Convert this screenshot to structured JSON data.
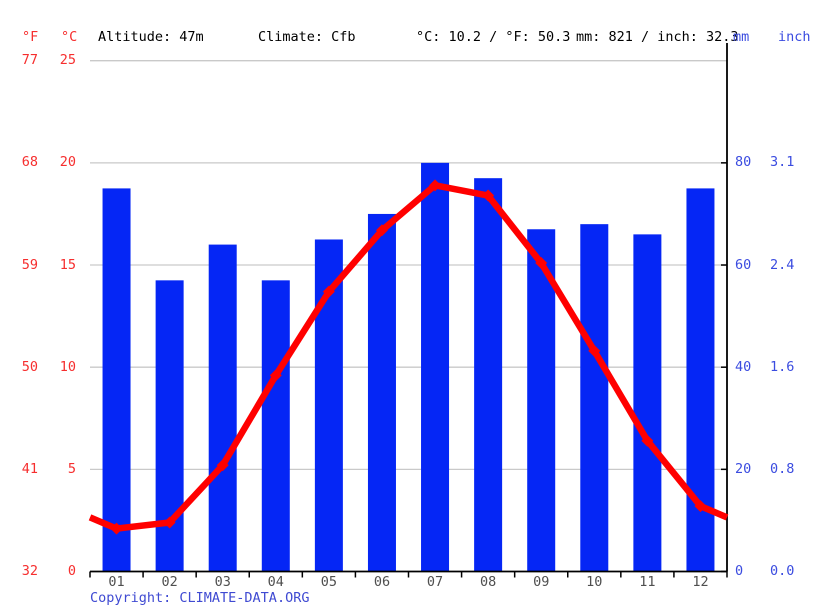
{
  "header": {
    "fahrenheit_label": "°F",
    "celsius_label": "°C",
    "altitude": "Altitude: 47m",
    "climate": "Climate: Cfb",
    "temp_summary": "°C: 10.2 / °F: 50.3",
    "precip_summary": "mm: 821 / inch: 32.3",
    "mm_label": "mm",
    "inch_label": "inch"
  },
  "footer": {
    "copyright_label": "Copyright: ",
    "copyright_link": "CLIMATE-DATA.ORG"
  },
  "colors": {
    "bar_blue": "#0526f5",
    "line_red": "#ff0000",
    "red_text": "#f62e2e",
    "blue_text": "#3b4ce0",
    "month_text": "#4f4f4f",
    "copyright_blue": "#3f4ad2",
    "grid": "#c9c9c9",
    "axis": "#000000"
  },
  "chart_data": {
    "type": "bar",
    "subtype": "climate-graph (precipitation bars + temperature line)",
    "categories": [
      "01",
      "02",
      "03",
      "04",
      "05",
      "06",
      "07",
      "08",
      "09",
      "10",
      "11",
      "12"
    ],
    "series": [
      {
        "name": "precipitation_mm",
        "type": "bar",
        "values": [
          75,
          57,
          64,
          57,
          65,
          70,
          80,
          77,
          67,
          68,
          66,
          75
        ]
      },
      {
        "name": "temperature_c",
        "type": "line",
        "values": [
          2.1,
          2.4,
          5.2,
          9.6,
          13.7,
          16.7,
          18.9,
          18.4,
          15.1,
          10.8,
          6.4,
          3.2
        ]
      }
    ],
    "axes": {
      "left_fahrenheit_ticks": [
        "77",
        "68",
        "59",
        "50",
        "41",
        "32"
      ],
      "left_celsius_ticks": [
        "25",
        "20",
        "15",
        "10",
        "5",
        "0"
      ],
      "left_celsius_values": [
        25,
        20,
        15,
        10,
        5,
        0
      ],
      "right_mm_ticks": [
        "80",
        "60",
        "40",
        "20",
        "0"
      ],
      "right_mm_values": [
        80,
        60,
        40,
        20,
        0
      ],
      "right_inch_ticks": [
        "3.1",
        "2.4",
        "1.6",
        "0.8",
        "0.0"
      ],
      "celsius_range": [
        0,
        25
      ],
      "mm_range": [
        0,
        100
      ],
      "grid": "horizontal-only",
      "legend": "none"
    }
  }
}
